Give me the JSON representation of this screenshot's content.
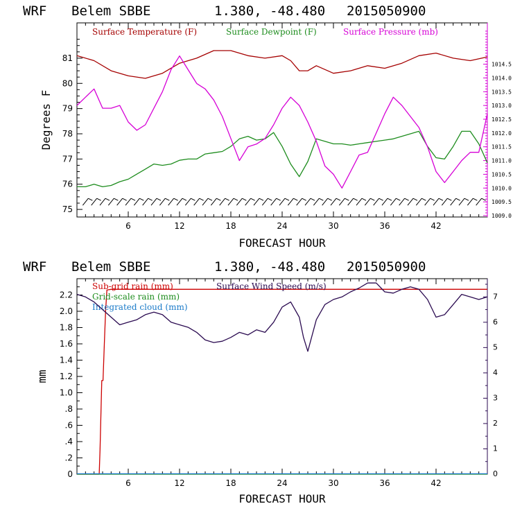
{
  "chart_data": [
    {
      "type": "line",
      "title": [
        "WRF",
        "Belem SBBE",
        "1.380, -48.480",
        "2015050900"
      ],
      "xlabel": "FORECAST HOUR",
      "ylabel": "Degrees F",
      "xlim": [
        0,
        48
      ],
      "ylim": [
        74.7,
        82.4
      ],
      "xticks": [
        6,
        12,
        18,
        24,
        30,
        36,
        42
      ],
      "yticks": [
        75,
        76,
        77,
        78,
        79,
        80,
        81
      ],
      "y2lim": [
        1008.95,
        1016.0
      ],
      "y2ticks": [
        "1009.0",
        "1009.5",
        "1010.0",
        "1010.5",
        "1011.0",
        "1011.5",
        "1012.0",
        "1012.5",
        "1013.0",
        "1013.5",
        "1014.0",
        "1014.5"
      ],
      "legend_placement": "top",
      "series": [
        {
          "name": "Surface Temperature (F)",
          "color": "#a50000",
          "axis": "left",
          "x": [
            0,
            2,
            4,
            6,
            8,
            10,
            12,
            14,
            16,
            18,
            20,
            22,
            24,
            25,
            26,
            27,
            28,
            30,
            32,
            34,
            36,
            38,
            40,
            42,
            44,
            46,
            48
          ],
          "y": [
            81.1,
            80.9,
            80.5,
            80.3,
            80.2,
            80.4,
            80.8,
            81.0,
            81.3,
            81.3,
            81.1,
            81.0,
            81.1,
            80.9,
            80.5,
            80.5,
            80.7,
            80.4,
            80.5,
            80.7,
            80.6,
            80.8,
            81.1,
            81.2,
            81.0,
            80.9,
            81.05
          ]
        },
        {
          "name": "Surface Dewpoint (F)",
          "color": "#1d8c1d",
          "axis": "left",
          "x": [
            0,
            1,
            2,
            3,
            4,
            5,
            6,
            7,
            8,
            9,
            10,
            11,
            12,
            13,
            14,
            15,
            16,
            17,
            18,
            19,
            20,
            21,
            22,
            23,
            24,
            25,
            26,
            27,
            28,
            29,
            30,
            31,
            32,
            33,
            34,
            35,
            36,
            37,
            38,
            39,
            40,
            41,
            42,
            43,
            44,
            45,
            46,
            47,
            48
          ],
          "y": [
            75.9,
            75.9,
            76.0,
            75.9,
            75.95,
            76.1,
            76.2,
            76.4,
            76.6,
            76.8,
            76.75,
            76.8,
            76.95,
            77.0,
            77.0,
            77.2,
            77.25,
            77.3,
            77.5,
            77.8,
            77.9,
            77.75,
            77.8,
            78.05,
            77.5,
            76.8,
            76.3,
            76.9,
            77.8,
            77.7,
            77.6,
            77.6,
            77.55,
            77.6,
            77.65,
            77.7,
            77.75,
            77.8,
            77.9,
            78.0,
            78.1,
            77.5,
            77.05,
            77.0,
            77.5,
            78.1,
            78.1,
            77.6,
            76.85
          ]
        },
        {
          "name": "Surface Pressure (mb)",
          "color": "#d600d6",
          "axis": "right",
          "x": [
            0,
            1,
            2,
            3,
            4,
            5,
            6,
            7,
            8,
            9,
            10,
            11,
            12,
            13,
            14,
            15,
            16,
            17,
            18,
            19,
            20,
            21,
            22,
            23,
            24,
            25,
            26,
            27,
            28,
            29,
            30,
            31,
            32,
            33,
            34,
            35,
            36,
            37,
            38,
            39,
            40,
            41,
            42,
            43,
            44,
            45,
            46,
            47,
            48
          ],
          "y": [
            1013.0,
            1013.3,
            1013.6,
            1012.9,
            1012.9,
            1013.0,
            1012.4,
            1012.1,
            1012.3,
            1012.9,
            1013.5,
            1014.3,
            1014.8,
            1014.3,
            1013.8,
            1013.6,
            1013.2,
            1012.6,
            1011.8,
            1011.0,
            1011.5,
            1011.6,
            1011.8,
            1012.3,
            1012.9,
            1013.3,
            1013.0,
            1012.4,
            1011.7,
            1010.8,
            1010.5,
            1010.0,
            1010.6,
            1011.2,
            1011.3,
            1012.0,
            1012.7,
            1013.3,
            1013.0,
            1012.6,
            1012.2,
            1011.5,
            1010.6,
            1010.2,
            1010.6,
            1011.0,
            1011.3,
            1011.3,
            1012.7
          ]
        }
      ]
    },
    {
      "type": "line",
      "title": [
        "WRF",
        "Belem SBBE",
        "1.380, -48.480",
        "2015050900"
      ],
      "xlabel": "FORECAST HOUR",
      "ylabel": "mm",
      "xlim": [
        0,
        48
      ],
      "ylim": [
        0,
        2.4
      ],
      "xticks": [
        6,
        12,
        18,
        24,
        30,
        36,
        42
      ],
      "yticks": [
        "0",
        ".2",
        ".4",
        ".6",
        ".8",
        "1.0",
        "1.2",
        "1.4",
        "1.6",
        "1.8",
        "2.0",
        "2.2"
      ],
      "ytick_values": [
        0,
        0.2,
        0.4,
        0.6,
        0.8,
        1.0,
        1.2,
        1.4,
        1.6,
        1.8,
        2.0,
        2.2
      ],
      "y2lim": [
        0,
        7.72
      ],
      "y2ticks": [
        "0",
        "1",
        "2",
        "3",
        "4",
        "5",
        "6",
        "7"
      ],
      "legend_placement": "top-left",
      "series": [
        {
          "name": "Sub-grid rain (mm)",
          "color": "#cc0000",
          "axis": "left",
          "x": [
            0,
            2.6,
            2.7,
            2.9,
            3.05,
            3.2,
            3.35,
            3.5,
            4,
            48
          ],
          "y": [
            0,
            0,
            0.3,
            1.15,
            1.15,
            1.6,
            2.0,
            2.26,
            2.27,
            2.27
          ]
        },
        {
          "name": "Grid-scale rain (mm)",
          "color": "#1d8c1d",
          "axis": "left",
          "x": [
            0,
            48
          ],
          "y": [
            0,
            0
          ]
        },
        {
          "name": "Integrated cloud (mm)",
          "color": "#1a7ac8",
          "axis": "left",
          "x": [
            0,
            48
          ],
          "y": [
            0.005,
            0.005
          ]
        },
        {
          "name": "Surface Wind Speed (m/s)",
          "color": "#2a0a50",
          "axis": "right",
          "x": [
            0,
            1,
            2,
            3,
            4,
            5,
            6,
            7,
            8,
            9,
            10,
            11,
            12,
            13,
            14,
            15,
            16,
            17,
            18,
            19,
            20,
            21,
            22,
            23,
            24,
            25,
            26,
            26.5,
            27,
            28,
            29,
            30,
            31,
            32,
            33,
            34,
            35,
            36,
            37,
            38,
            39,
            40,
            41,
            42,
            43,
            44,
            45,
            46,
            47,
            48
          ],
          "y": [
            7.1,
            7.0,
            6.8,
            6.5,
            6.2,
            5.9,
            6.0,
            6.1,
            6.3,
            6.4,
            6.3,
            6.0,
            5.9,
            5.8,
            5.6,
            5.3,
            5.2,
            5.25,
            5.4,
            5.6,
            5.5,
            5.7,
            5.6,
            6.0,
            6.6,
            6.8,
            6.2,
            5.4,
            4.85,
            6.1,
            6.7,
            6.9,
            7.0,
            7.2,
            7.35,
            7.55,
            7.55,
            7.2,
            7.15,
            7.3,
            7.4,
            7.3,
            6.9,
            6.2,
            6.3,
            6.7,
            7.1,
            7.0,
            6.9,
            7.0
          ]
        }
      ]
    }
  ]
}
